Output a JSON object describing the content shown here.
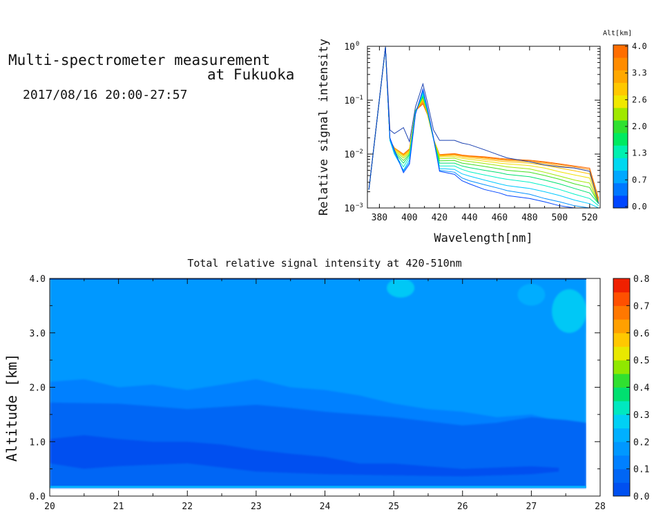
{
  "header": {
    "title_line1": "Multi-spectrometer measurement",
    "title_line2": "at Fukuoka",
    "datetime": "2017/08/16 20:00-27:57"
  },
  "chart_data": [
    {
      "type": "line",
      "title": "",
      "xlabel": "Wavelength[nm]",
      "ylabel": "Relative signal intensity",
      "xlim": [
        372,
        527
      ],
      "ylim": [
        0.001,
        1
      ],
      "yscale": "log",
      "x_ticks": [
        "380",
        "400",
        "420",
        "440",
        "460",
        "480",
        "500",
        "520"
      ],
      "y_tick_bases": [
        "10",
        "10",
        "10",
        "10"
      ],
      "y_tick_exponents": [
        "0",
        "−1",
        "−2",
        "−3"
      ],
      "x": [
        373,
        384,
        387,
        390,
        396,
        400,
        404,
        409,
        412,
        416,
        420,
        430,
        435,
        440,
        450,
        460,
        465,
        480,
        490,
        500,
        510,
        520,
        526
      ],
      "colorbar": {
        "label": "Alt[km]",
        "ticks": [
          "4.0",
          "3.3",
          "2.6",
          "2.0",
          "1.3",
          "0.7",
          "0.0"
        ],
        "colors": [
          "#0046ff",
          "#0078ff",
          "#00a8ff",
          "#00d8f0",
          "#00f0b0",
          "#00ea60",
          "#30e030",
          "#a0e800",
          "#f0e800",
          "#ffc800",
          "#ffa800",
          "#ff8c00",
          "#ff6e00"
        ]
      },
      "series": [
        {
          "alt": 0.0,
          "color": "#1a40b0",
          "values": [
            0.0022,
            0.98,
            0.028,
            0.024,
            0.031,
            0.017,
            0.075,
            0.2,
            0.09,
            0.028,
            0.018,
            0.018,
            0.016,
            0.015,
            0.012,
            0.0095,
            0.0085,
            0.0072,
            0.0063,
            0.0058,
            0.0055,
            0.0048,
            0.0012
          ]
        },
        {
          "alt": 0.3,
          "color": "#0046ff",
          "values": [
            0.0022,
            0.95,
            0.02,
            0.012,
            0.0045,
            0.0065,
            0.055,
            0.16,
            0.07,
            0.02,
            0.0048,
            0.0042,
            0.0032,
            0.0028,
            0.0022,
            0.0019,
            0.0017,
            0.0015,
            0.0013,
            0.0011,
            0.001,
            0.0009,
            0.0008
          ]
        },
        {
          "alt": 0.7,
          "color": "#0090ff",
          "values": [
            0.0022,
            0.95,
            0.019,
            0.011,
            0.0048,
            0.007,
            0.057,
            0.15,
            0.068,
            0.02,
            0.005,
            0.0046,
            0.0036,
            0.0032,
            0.0027,
            0.0023,
            0.0021,
            0.0018,
            0.0015,
            0.0013,
            0.0011,
            0.001,
            0.0009
          ]
        },
        {
          "alt": 1.0,
          "color": "#00c8ff",
          "values": [
            0.0022,
            0.95,
            0.018,
            0.01,
            0.005,
            0.0078,
            0.058,
            0.14,
            0.066,
            0.019,
            0.0054,
            0.0052,
            0.0043,
            0.0039,
            0.0033,
            0.0028,
            0.0026,
            0.0023,
            0.002,
            0.0017,
            0.0014,
            0.0012,
            0.001
          ]
        },
        {
          "alt": 1.3,
          "color": "#00f0c8",
          "values": [
            0.0022,
            0.95,
            0.018,
            0.01,
            0.0058,
            0.0088,
            0.06,
            0.13,
            0.064,
            0.019,
            0.006,
            0.006,
            0.0052,
            0.0047,
            0.0041,
            0.0036,
            0.0034,
            0.003,
            0.0026,
            0.0022,
            0.0018,
            0.0015,
            0.0011
          ]
        },
        {
          "alt": 1.7,
          "color": "#00e070",
          "values": [
            0.0022,
            0.95,
            0.018,
            0.0105,
            0.0068,
            0.0095,
            0.062,
            0.12,
            0.062,
            0.019,
            0.0068,
            0.0068,
            0.006,
            0.0056,
            0.005,
            0.0045,
            0.0042,
            0.0038,
            0.0033,
            0.0028,
            0.0023,
            0.0019,
            0.0012
          ]
        },
        {
          "alt": 2.0,
          "color": "#40e020",
          "values": [
            0.0022,
            0.95,
            0.018,
            0.011,
            0.0076,
            0.01,
            0.063,
            0.115,
            0.06,
            0.019,
            0.0075,
            0.0076,
            0.0068,
            0.0065,
            0.0059,
            0.0053,
            0.005,
            0.0046,
            0.004,
            0.0034,
            0.0028,
            0.0024,
            0.0012
          ]
        },
        {
          "alt": 2.3,
          "color": "#a0e800",
          "values": [
            0.0022,
            0.95,
            0.018,
            0.0115,
            0.0084,
            0.0105,
            0.064,
            0.11,
            0.059,
            0.019,
            0.0082,
            0.0084,
            0.0076,
            0.0073,
            0.0067,
            0.0061,
            0.0058,
            0.0053,
            0.0046,
            0.0039,
            0.0033,
            0.0029,
            0.0012
          ]
        },
        {
          "alt": 2.6,
          "color": "#f0e000",
          "values": [
            0.0022,
            0.95,
            0.018,
            0.012,
            0.009,
            0.011,
            0.064,
            0.105,
            0.058,
            0.019,
            0.0088,
            0.009,
            0.0083,
            0.008,
            0.0074,
            0.0068,
            0.0066,
            0.0061,
            0.0055,
            0.0047,
            0.0041,
            0.0036,
            0.0012
          ]
        },
        {
          "alt": 3.0,
          "color": "#ffc000",
          "values": [
            0.0022,
            0.95,
            0.018,
            0.0125,
            0.0094,
            0.0115,
            0.064,
            0.1,
            0.057,
            0.019,
            0.0092,
            0.0095,
            0.0088,
            0.0085,
            0.008,
            0.0074,
            0.0072,
            0.0068,
            0.0062,
            0.0055,
            0.0049,
            0.0043,
            0.0013
          ]
        },
        {
          "alt": 3.3,
          "color": "#ffa000",
          "values": [
            0.0022,
            0.95,
            0.018,
            0.013,
            0.0097,
            0.012,
            0.064,
            0.095,
            0.056,
            0.019,
            0.0095,
            0.0098,
            0.0092,
            0.0089,
            0.0084,
            0.0078,
            0.0076,
            0.0072,
            0.0067,
            0.006,
            0.0055,
            0.0048,
            0.0014
          ]
        },
        {
          "alt": 3.7,
          "color": "#ff8000",
          "values": [
            0.0022,
            0.95,
            0.018,
            0.013,
            0.0099,
            0.0122,
            0.064,
            0.09,
            0.055,
            0.019,
            0.0097,
            0.01,
            0.0094,
            0.0091,
            0.0087,
            0.0081,
            0.0079,
            0.0075,
            0.007,
            0.0064,
            0.0058,
            0.0052,
            0.0014
          ]
        },
        {
          "alt": 4.0,
          "color": "#ff6800",
          "values": [
            0.0022,
            0.95,
            0.018,
            0.013,
            0.01,
            0.0125,
            0.064,
            0.085,
            0.054,
            0.019,
            0.0098,
            0.0102,
            0.0096,
            0.0093,
            0.0089,
            0.0083,
            0.0081,
            0.0077,
            0.0072,
            0.0066,
            0.006,
            0.0055,
            0.0015
          ]
        }
      ]
    },
    {
      "type": "heatmap",
      "title": "Total relative signal intensity at 420-510nm",
      "xlabel": "",
      "ylabel": "Altitude [km]",
      "xlim": [
        20,
        28
      ],
      "ylim": [
        0,
        4
      ],
      "x_ticks": [
        "20",
        "21",
        "22",
        "23",
        "24",
        "25",
        "26",
        "27",
        "28"
      ],
      "y_ticks": [
        "0.0",
        "1.0",
        "2.0",
        "3.0",
        "4.0"
      ],
      "data_x_end": 27.8,
      "data_y_range": [
        0.15,
        4.0
      ],
      "colorbar": {
        "ticks": [
          "0.8",
          "0.7",
          "0.6",
          "0.5",
          "0.4",
          "0.3",
          "0.2",
          "0.1",
          "0.0"
        ],
        "levels": [
          0.0,
          0.05,
          0.1,
          0.15,
          0.2,
          0.25,
          0.3,
          0.35,
          0.4,
          0.45,
          0.5,
          0.55,
          0.6,
          0.65,
          0.7,
          0.75,
          0.8
        ],
        "colors": [
          "#0050f0",
          "#0066f5",
          "#0080ff",
          "#0098ff",
          "#00b0ff",
          "#00d0f5",
          "#00e8c0",
          "#00e070",
          "#30e030",
          "#90e800",
          "#e8e800",
          "#ffc800",
          "#ffa000",
          "#ff7800",
          "#ff5000",
          "#f02000"
        ]
      },
      "layers": [
        {
          "name": "background",
          "value": 0.17
        },
        {
          "name": "upper",
          "value": 0.19,
          "y_bottom_profile": [
            [
              20,
              2.35
            ],
            [
              21,
              2.5
            ],
            [
              22,
              2.35
            ],
            [
              23,
              2.45
            ],
            [
              24,
              2.55
            ],
            [
              25,
              2.7
            ],
            [
              26,
              2.75
            ],
            [
              27,
              2.9
            ],
            [
              27.8,
              3.0
            ]
          ]
        },
        {
          "name": "mid",
          "value": 0.13,
          "y_top_profile": [
            [
              20,
              2.1
            ],
            [
              20.5,
              2.15
            ],
            [
              21,
              2.0
            ],
            [
              21.5,
              2.05
            ],
            [
              22,
              1.95
            ],
            [
              22.5,
              2.05
            ],
            [
              23,
              2.15
            ],
            [
              23.5,
              2.0
            ],
            [
              24,
              1.95
            ],
            [
              24.5,
              1.85
            ],
            [
              25,
              1.7
            ],
            [
              25.5,
              1.6
            ],
            [
              26,
              1.55
            ],
            [
              26.5,
              1.45
            ],
            [
              27,
              1.5
            ],
            [
              27.5,
              1.35
            ],
            [
              27.8,
              1.3
            ]
          ]
        },
        {
          "name": "low",
          "value": 0.08,
          "y_top_profile": [
            [
              20,
              1.72
            ],
            [
              21,
              1.7
            ],
            [
              22,
              1.6
            ],
            [
              23,
              1.68
            ],
            [
              23.5,
              1.62
            ],
            [
              24,
              1.55
            ],
            [
              25,
              1.45
            ],
            [
              26,
              1.3
            ],
            [
              26.5,
              1.35
            ],
            [
              27,
              1.45
            ],
            [
              27.5,
              1.4
            ],
            [
              27.8,
              1.35
            ]
          ]
        },
        {
          "name": "lowest",
          "value": 0.03,
          "y_top_profile": [
            [
              20,
              1.05
            ],
            [
              20.5,
              1.12
            ],
            [
              21,
              1.05
            ],
            [
              21.5,
              1.0
            ],
            [
              22,
              1.0
            ],
            [
              22.5,
              0.95
            ],
            [
              23,
              0.85
            ],
            [
              23.5,
              0.78
            ],
            [
              24,
              0.72
            ],
            [
              24.5,
              0.6
            ],
            [
              25,
              0.6
            ],
            [
              25.5,
              0.55
            ],
            [
              26,
              0.5
            ],
            [
              27,
              0.55
            ],
            [
              27.4,
              0.52
            ]
          ],
          "y_bottom_profile": [
            [
              20,
              0.6
            ],
            [
              20.5,
              0.5
            ],
            [
              21,
              0.55
            ],
            [
              22,
              0.6
            ],
            [
              23,
              0.45
            ],
            [
              24,
              0.4
            ],
            [
              25,
              0.38
            ],
            [
              26,
              0.36
            ],
            [
              27,
              0.4
            ],
            [
              27.4,
              0.45
            ]
          ]
        },
        {
          "name": "bright-patch-1",
          "value": 0.25,
          "x_range": [
            24.9,
            25.3
          ],
          "y_range": [
            3.65,
            4.0
          ]
        },
        {
          "name": "bright-patch-2",
          "value": 0.28,
          "x_range": [
            27.3,
            27.8
          ],
          "y_range": [
            3.0,
            3.8
          ]
        },
        {
          "name": "bright-patch-3",
          "value": 0.23,
          "x_range": [
            26.8,
            27.2
          ],
          "y_range": [
            3.5,
            3.9
          ]
        }
      ]
    }
  ]
}
